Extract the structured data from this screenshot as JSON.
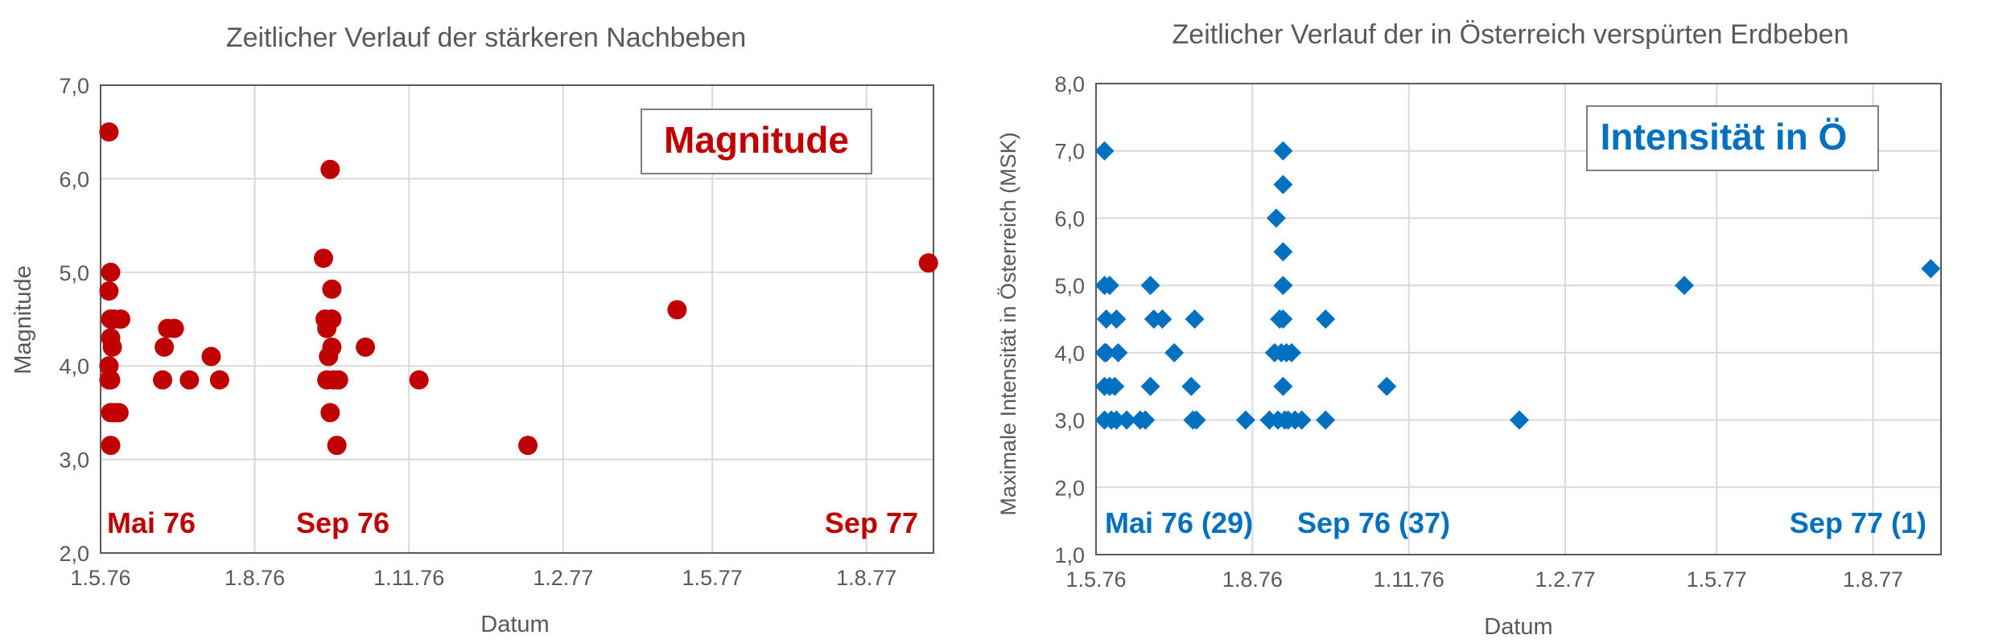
{
  "colors": {
    "left_series": "#c00000",
    "right_series": "#0070c0",
    "left_label": "#c00000",
    "right_label": "#0070c0",
    "axis_text": "#595959",
    "title_text": "#595959",
    "grid": "#d9d9d9",
    "plot_border": "#595959"
  },
  "chart_data": [
    {
      "type": "scatter",
      "marker": "circle",
      "title": "Zeitlicher Verlauf der stärkeren Nachbeben",
      "xlabel": "Datum",
      "ylabel": "Magnitude",
      "x_axis_type": "date",
      "xlim": [
        "1976-05-01",
        "1977-09-10"
      ],
      "ylim": [
        2.0,
        7.0
      ],
      "x_ticks": [
        "1976-05-01",
        "1976-08-01",
        "1976-11-01",
        "1977-02-01",
        "1977-05-01",
        "1977-08-01"
      ],
      "x_tick_labels": [
        "1.5.76",
        "1.8.76",
        "1.11.76",
        "1.2.77",
        "1.5.77",
        "1.8.77"
      ],
      "y_ticks": [
        2.0,
        3.0,
        4.0,
        5.0,
        6.0,
        7.0
      ],
      "y_tick_labels": [
        "2,0",
        "3,0",
        "4,0",
        "5,0",
        "6,0",
        "7,0"
      ],
      "grid": true,
      "legend_box": "Magnitude",
      "annotations": [
        "Mai 76",
        "Sep 76",
        "Sep 77"
      ],
      "series": [
        {
          "points": [
            [
              "1976-05-06",
              6.5
            ],
            [
              "1976-05-06",
              4.8
            ],
            [
              "1976-05-07",
              5.0
            ],
            [
              "1976-05-07",
              4.5
            ],
            [
              "1976-05-07",
              4.3
            ],
            [
              "1976-05-06",
              4.0
            ],
            [
              "1976-05-06",
              3.85
            ],
            [
              "1976-05-07",
              3.85
            ],
            [
              "1976-05-07",
              3.5
            ],
            [
              "1976-05-07",
              3.15
            ],
            [
              "1976-05-08",
              4.2
            ],
            [
              "1976-05-09",
              4.5
            ],
            [
              "1976-05-09",
              3.5
            ],
            [
              "1976-05-10",
              3.5
            ],
            [
              "1976-05-12",
              3.5
            ],
            [
              "1976-05-13",
              4.5
            ],
            [
              "1976-06-07",
              3.85
            ],
            [
              "1976-06-08",
              4.2
            ],
            [
              "1976-06-10",
              4.4
            ],
            [
              "1976-06-14",
              4.4
            ],
            [
              "1976-06-23",
              3.85
            ],
            [
              "1976-07-06",
              4.1
            ],
            [
              "1976-07-11",
              3.85
            ],
            [
              "1976-09-11",
              5.15
            ],
            [
              "1976-09-13",
              3.85
            ],
            [
              "1976-09-12",
              4.5
            ],
            [
              "1976-09-13",
              4.4
            ],
            [
              "1976-09-15",
              6.1
            ],
            [
              "1976-09-14",
              4.1
            ],
            [
              "1976-09-15",
              3.5
            ],
            [
              "1976-09-16",
              4.82
            ],
            [
              "1976-09-16",
              4.5
            ],
            [
              "1976-09-16",
              4.2
            ],
            [
              "1976-09-17",
              3.85
            ],
            [
              "1976-09-19",
              3.15
            ],
            [
              "1976-09-20",
              3.85
            ],
            [
              "1976-10-06",
              4.2
            ],
            [
              "1976-11-07",
              3.85
            ],
            [
              "1977-01-11",
              3.15
            ],
            [
              "1977-04-10",
              4.6
            ],
            [
              "1977-09-07",
              5.1
            ]
          ]
        }
      ]
    },
    {
      "type": "scatter",
      "marker": "diamond",
      "title": "Zeitlicher Verlauf der in Österreich verspürten Erdbeben",
      "xlabel": "Datum",
      "ylabel": "Maximale Intensität in Österreich (MSK)",
      "x_axis_type": "date",
      "xlim": [
        "1976-05-01",
        "1977-09-10"
      ],
      "ylim": [
        1.0,
        8.0
      ],
      "x_ticks": [
        "1976-05-01",
        "1976-08-01",
        "1976-11-01",
        "1977-02-01",
        "1977-05-01",
        "1977-08-01"
      ],
      "x_tick_labels": [
        "1.5.76",
        "1.8.76",
        "1.11.76",
        "1.2.77",
        "1.5.77",
        "1.8.77"
      ],
      "y_ticks": [
        1.0,
        2.0,
        3.0,
        4.0,
        5.0,
        6.0,
        7.0,
        8.0
      ],
      "y_tick_labels": [
        "1,0",
        "2,0",
        "3,0",
        "4,0",
        "5,0",
        "6,0",
        "7,0",
        "8,0"
      ],
      "grid": true,
      "legend_box": "Intensität in Ö",
      "annotations": [
        "Mai 76 (29)",
        "Sep 76 (37)",
        "Sep 77 (1)"
      ],
      "series": [
        {
          "points": [
            [
              "1976-05-06",
              7.0
            ],
            [
              "1976-05-06",
              5.0
            ],
            [
              "1976-05-09",
              5.0
            ],
            [
              "1976-05-07",
              4.5
            ],
            [
              "1976-05-13",
              4.5
            ],
            [
              "1976-05-06",
              4.0
            ],
            [
              "1976-05-07",
              4.0
            ],
            [
              "1976-05-14",
              4.0
            ],
            [
              "1976-05-06",
              3.5
            ],
            [
              "1976-05-09",
              3.5
            ],
            [
              "1976-05-12",
              3.5
            ],
            [
              "1976-05-06",
              3.0
            ],
            [
              "1976-05-10",
              3.0
            ],
            [
              "1976-05-13",
              3.0
            ],
            [
              "1976-05-19",
              3.0
            ],
            [
              "1976-05-27",
              3.0
            ],
            [
              "1976-05-30",
              3.0
            ],
            [
              "1976-06-02",
              5.0
            ],
            [
              "1976-06-04",
              4.5
            ],
            [
              "1976-06-09",
              4.5
            ],
            [
              "1976-06-02",
              3.5
            ],
            [
              "1976-06-16",
              4.0
            ],
            [
              "1976-06-28",
              4.5
            ],
            [
              "1976-06-26",
              3.5
            ],
            [
              "1976-06-27",
              3.0
            ],
            [
              "1976-06-29",
              3.0
            ],
            [
              "1976-07-28",
              3.0
            ],
            [
              "1976-08-11",
              3.0
            ],
            [
              "1976-08-14",
              4.0
            ],
            [
              "1976-08-15",
              6.0
            ],
            [
              "1976-08-17",
              4.5
            ],
            [
              "1976-08-18",
              4.0
            ],
            [
              "1976-08-16",
              3.0
            ],
            [
              "1976-08-19",
              7.0
            ],
            [
              "1976-08-19",
              6.5
            ],
            [
              "1976-08-19",
              5.5
            ],
            [
              "1976-08-19",
              5.0
            ],
            [
              "1976-08-19",
              4.5
            ],
            [
              "1976-08-19",
              3.5
            ],
            [
              "1976-08-20",
              3.0
            ],
            [
              "1976-08-21",
              4.0
            ],
            [
              "1976-08-22",
              3.0
            ],
            [
              "1976-08-24",
              4.0
            ],
            [
              "1976-08-26",
              3.0
            ],
            [
              "1976-08-30",
              3.0
            ],
            [
              "1976-09-13",
              4.5
            ],
            [
              "1976-09-13",
              3.0
            ],
            [
              "1976-10-19",
              3.5
            ],
            [
              "1977-01-05",
              3.0
            ],
            [
              "1977-04-12",
              5.0
            ],
            [
              "1977-09-04",
              5.25
            ]
          ]
        }
      ]
    }
  ]
}
